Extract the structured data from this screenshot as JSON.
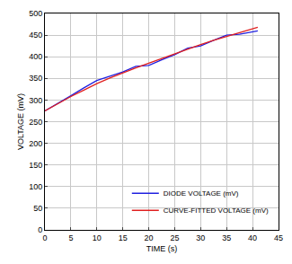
{
  "chart_data": {
    "type": "line",
    "x_label": "TIME (s)",
    "y_label": "VOLTAGE (mV)",
    "x": [
      0,
      2.5,
      5,
      7.5,
      10,
      12.5,
      15,
      17.5,
      20,
      22.5,
      25,
      27.5,
      30,
      32.5,
      35,
      37.5,
      40,
      41
    ],
    "series": [
      {
        "name": "DIODE VOLTAGE (mV)",
        "color": "#2020e0",
        "values": [
          275,
          292,
          310,
          328,
          345,
          355,
          365,
          378,
          380,
          393,
          405,
          420,
          425,
          438,
          450,
          452,
          458,
          460
        ]
      },
      {
        "name": "CURVE-FITTED VOLTAGE (mV)",
        "color": "#e02020",
        "values": [
          275,
          292,
          308,
          323,
          338,
          351,
          363,
          374,
          385,
          396,
          407,
          418,
          428,
          438,
          447,
          456,
          465,
          468
        ]
      }
    ],
    "xlim": [
      0,
      45
    ],
    "xticks": [
      0,
      5,
      10,
      15,
      20,
      25,
      30,
      35,
      40,
      45
    ],
    "ylim": [
      0,
      500
    ],
    "yticks": [
      0,
      50,
      100,
      150,
      200,
      250,
      300,
      350,
      400,
      450,
      500
    ],
    "grid": true,
    "legend": "lower right"
  }
}
